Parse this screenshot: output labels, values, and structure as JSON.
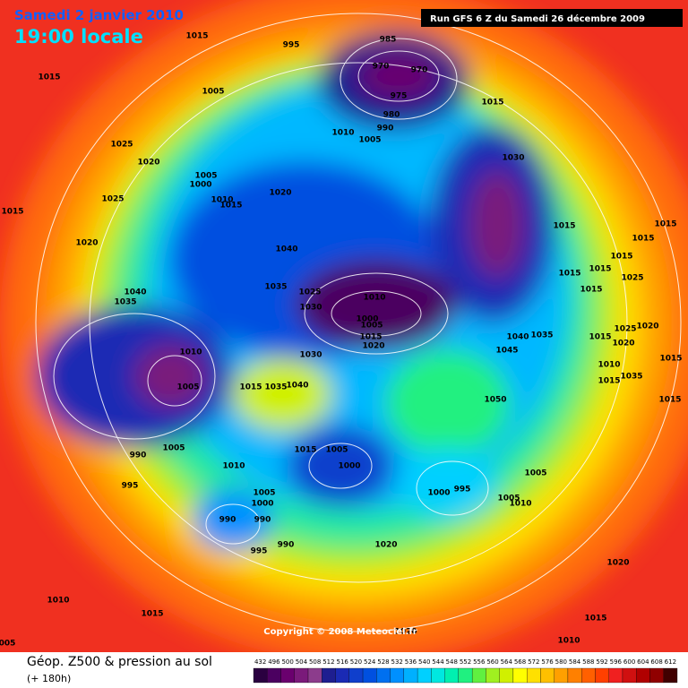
{
  "header": {
    "date": "Samedi 2 janvier 2010",
    "time": "19:00 locale",
    "run": "Run GFS 6 Z du Samedi 26 décembre 2009"
  },
  "copyright": "Copyright © 2008 Meteociel.fr",
  "footer": {
    "title": "Géop. Z500 & pression au sol",
    "subtitle": "(+ 180h)"
  },
  "legend": {
    "values": [
      432,
      496,
      500,
      504,
      508,
      512,
      516,
      520,
      524,
      528,
      532,
      536,
      540,
      544,
      548,
      552,
      556,
      560,
      564,
      568,
      572,
      576,
      580,
      584,
      588,
      592,
      596,
      600,
      604,
      608,
      612
    ],
    "colors": [
      "#2a0040",
      "#4b0060",
      "#6a006e",
      "#7a1a7a",
      "#8c3c8c",
      "#1e1e90",
      "#1a2ab4",
      "#0f3fcc",
      "#0050e0",
      "#0070f0",
      "#0090ff",
      "#00b0ff",
      "#00d0ff",
      "#00e8e0",
      "#00f0b0",
      "#20f080",
      "#60f040",
      "#a0f020",
      "#d0f000",
      "#ffff00",
      "#ffe000",
      "#ffc000",
      "#ffa000",
      "#ff8000",
      "#ff6000",
      "#ff4000",
      "#f02020",
      "#d01010",
      "#b00000",
      "#900000",
      "#400000"
    ]
  },
  "isobar_labels": [
    "1015",
    "995",
    "985",
    "970",
    "970",
    "1015",
    "1005",
    "975",
    "980",
    "1015",
    "990",
    "1010",
    "1005",
    "1025",
    "1020",
    "1030",
    "1005",
    "1000",
    "1010",
    "1015",
    "1020",
    "1025",
    "1015",
    "1015",
    "1015",
    "1015",
    "1020",
    "1040",
    "1015",
    "1015",
    "1015",
    "1025",
    "1035",
    "1040",
    "1025",
    "1010",
    "1015",
    "1035",
    "1030",
    "1000",
    "1005",
    "1025",
    "1020",
    "1015",
    "1020",
    "1040",
    "1035",
    "1015",
    "1020",
    "1045",
    "1030",
    "1010",
    "1015",
    "1010",
    "1035",
    "1015",
    "1005",
    "1015",
    "1035",
    "1040",
    "1050",
    "1015",
    "1005",
    "990",
    "1015",
    "1005",
    "1010",
    "1000",
    "1005",
    "995",
    "1000",
    "995",
    "1005",
    "1000",
    "1005",
    "1010",
    "990",
    "990",
    "995",
    "990",
    "1020",
    "1020",
    "1010",
    "1015",
    "1015",
    "1010",
    "1020",
    "005"
  ]
}
